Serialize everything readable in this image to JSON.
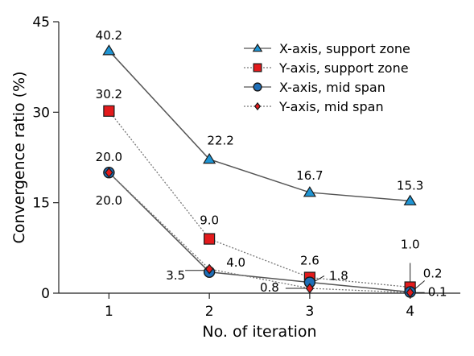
{
  "chart_data": {
    "type": "line",
    "xlabel": "No. of iteration",
    "ylabel": "Convergence ratio (%)",
    "x": [
      1,
      2,
      3,
      4
    ],
    "xlim": [
      0.5,
      4.5
    ],
    "ylim": [
      0,
      45
    ],
    "xticks": [
      "1",
      "2",
      "3",
      "4"
    ],
    "yticks": [
      "0",
      "15",
      "30",
      "45"
    ],
    "grid": false,
    "legend_position": "top-right",
    "series": [
      {
        "name": "X-axis, support zone",
        "values": [
          40.2,
          22.2,
          16.7,
          15.3
        ],
        "labels": [
          "40.2",
          "22.2",
          "16.7",
          "15.3"
        ],
        "marker": "triangle",
        "line": "solid",
        "color": "#1f95d4",
        "line_color": "#555555"
      },
      {
        "name": "Y-axis, support zone",
        "values": [
          30.2,
          9.0,
          2.6,
          1.0
        ],
        "labels": [
          "30.2",
          "9.0",
          "2.6",
          "1.0"
        ],
        "marker": "square",
        "line": "dotted",
        "color": "#e31a1c",
        "line_color": "#777777"
      },
      {
        "name": "X-axis, mid span",
        "values": [
          20.0,
          3.5,
          1.8,
          0.2
        ],
        "labels": [
          "20.0",
          "3.5",
          "1.8",
          "0.2"
        ],
        "marker": "circle",
        "line": "solid",
        "color": "#1f6fb8",
        "line_color": "#555555"
      },
      {
        "name": "Y-axis, mid span",
        "values": [
          20.0,
          4.0,
          0.8,
          0.1
        ],
        "labels": [
          "20.0",
          "4.0",
          "0.8",
          "0.1"
        ],
        "marker": "diamond",
        "line": "dotted",
        "color": "#e31a1c",
        "line_color": "#777777"
      }
    ]
  }
}
